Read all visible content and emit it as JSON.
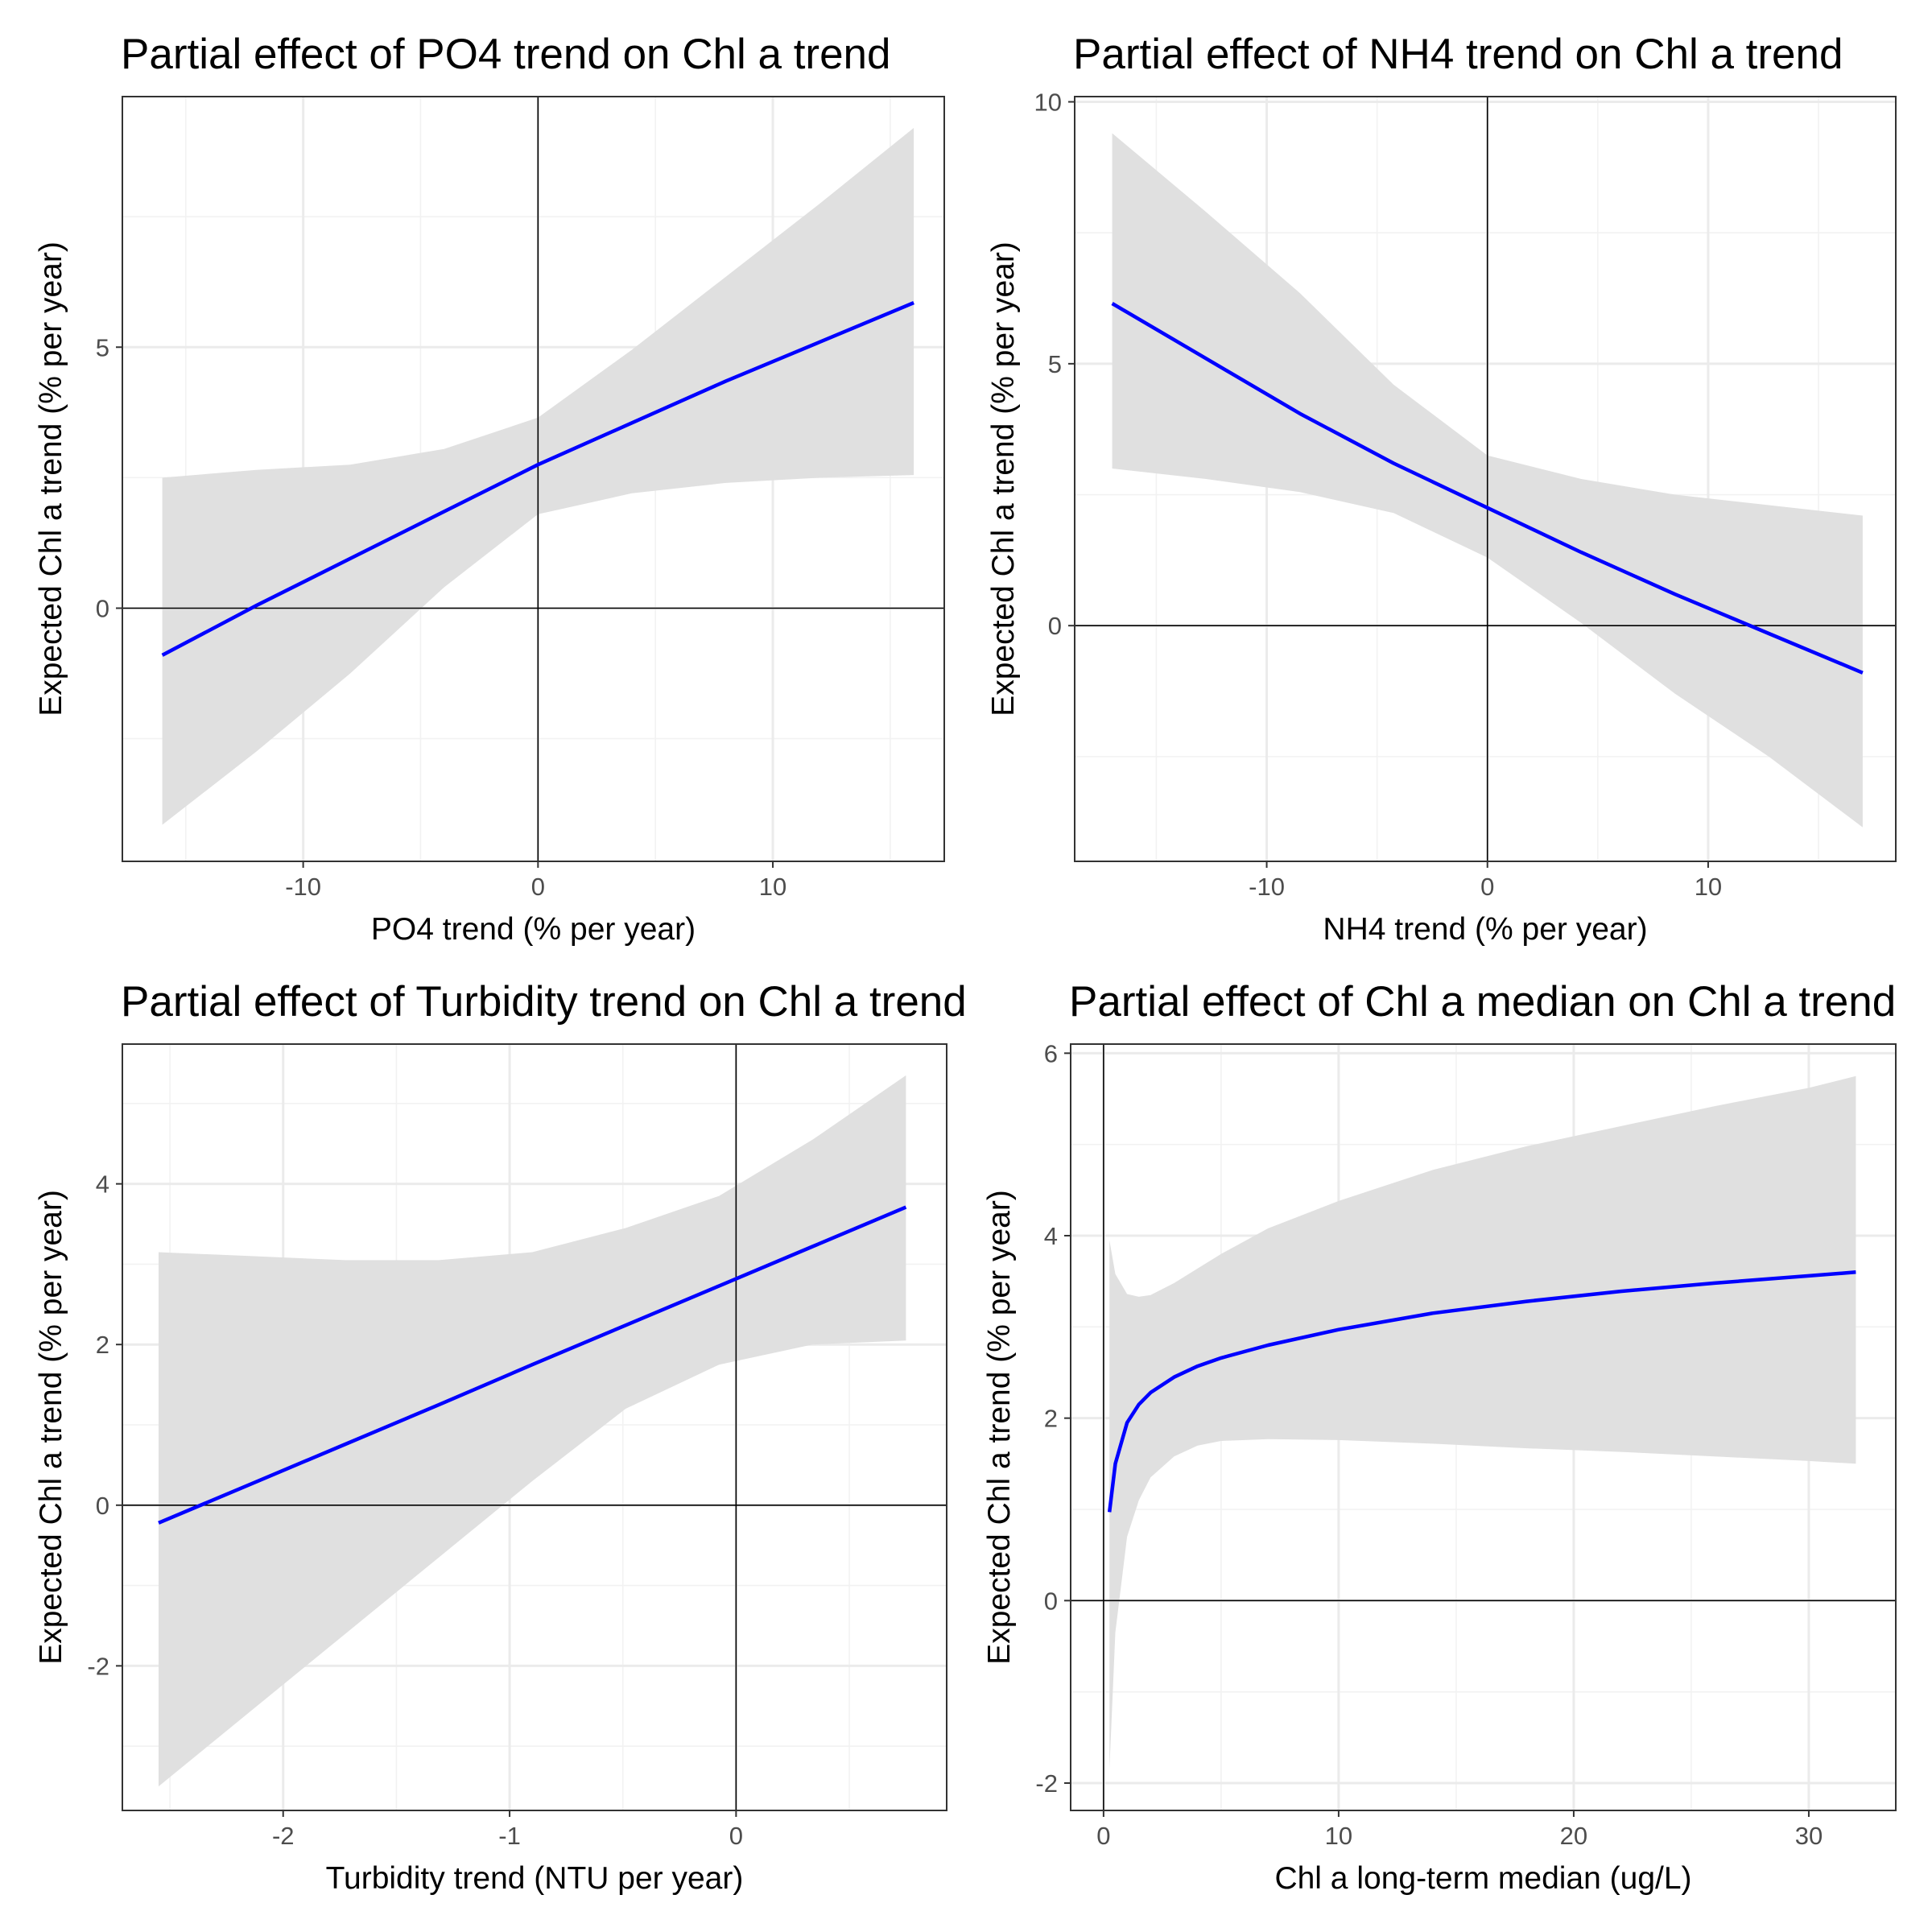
{
  "chart_data": [
    {
      "type": "line",
      "title": "Partial effect of PO4 trend on Chl a trend",
      "xlabel": "PO4 trend (% per year)",
      "ylabel": "Expected Chl a trend (% per year)",
      "xlim": [
        -17.7,
        17.3
      ],
      "ylim": [
        -4.85,
        9.8
      ],
      "xticks": [
        -10,
        0,
        10
      ],
      "yticks": [
        0,
        5
      ],
      "xtick_labels": [
        "-10",
        "0",
        "10"
      ],
      "ytick_labels": [
        "0",
        "5"
      ],
      "xminor": [
        -15,
        -5,
        5,
        15
      ],
      "yminor": [
        -2.5,
        2.5,
        7.5
      ],
      "refline_x": 0,
      "refline_y": 0,
      "grid": true,
      "line_color": "#0000ff",
      "band_color": "#e0e0e0",
      "x": [
        -16,
        -12,
        -8,
        -4,
        0,
        4,
        8,
        12,
        16
      ],
      "y": [
        -0.9,
        0.05,
        0.95,
        1.85,
        2.75,
        3.55,
        4.35,
        5.1,
        5.85
      ],
      "lower": [
        -4.15,
        -2.75,
        -1.25,
        0.4,
        1.8,
        2.2,
        2.4,
        2.5,
        2.55
      ],
      "upper": [
        2.5,
        2.65,
        2.75,
        3.05,
        3.65,
        4.95,
        6.35,
        7.75,
        9.2
      ]
    },
    {
      "type": "line",
      "title": "Partial effect of NH4 trend on Chl a trend",
      "xlabel": "NH4 trend (% per year)",
      "ylabel": "Expected Chl a trend (% per year)",
      "xlim": [
        -18.7,
        18.5
      ],
      "ylim": [
        -4.5,
        10.1
      ],
      "xticks": [
        -10,
        0,
        10
      ],
      "yticks": [
        0,
        5,
        10
      ],
      "xtick_labels": [
        "-10",
        "0",
        "10"
      ],
      "ytick_labels": [
        "0",
        "5",
        "10"
      ],
      "xminor": [
        -15,
        -5,
        5,
        15
      ],
      "yminor": [
        -2.5,
        2.5,
        7.5
      ],
      "refline_x": 0,
      "refline_y": 0,
      "grid": true,
      "line_color": "#0000ff",
      "band_color": "#e0e0e0",
      "x": [
        -17,
        -12.75,
        -8.5,
        -4.25,
        0,
        4.25,
        8.5,
        12.75,
        17
      ],
      "y": [
        6.15,
        5.1,
        4.05,
        3.1,
        2.25,
        1.4,
        0.6,
        -0.15,
        -0.9
      ],
      "lower": [
        3.0,
        2.8,
        2.55,
        2.15,
        1.3,
        0.05,
        -1.3,
        -2.5,
        -3.85
      ],
      "upper": [
        9.4,
        7.9,
        6.35,
        4.6,
        3.25,
        2.8,
        2.5,
        2.3,
        2.1
      ]
    },
    {
      "type": "line",
      "title": "Partial effect of Turbidity trend on Chl a trend",
      "xlabel": "Turbidity trend (NTU per year)",
      "ylabel": "Expected Chl a trend (% per year)",
      "xlim": [
        -2.71,
        0.93
      ],
      "ylim": [
        -3.8,
        5.74
      ],
      "xticks": [
        -2,
        -1,
        0
      ],
      "yticks": [
        -2,
        0,
        2,
        4
      ],
      "xtick_labels": [
        "-2",
        "-1",
        "0"
      ],
      "ytick_labels": [
        "-2",
        "0",
        "2",
        "4"
      ],
      "xminor": [
        -2.5,
        -1.5,
        -0.5,
        0.5
      ],
      "yminor": [
        -3,
        -1,
        1,
        3,
        5
      ],
      "refline_x": 0,
      "refline_y": 0,
      "grid": true,
      "line_color": "#0000ff",
      "band_color": "#e0e0e0",
      "x": [
        -2.55,
        -2.1375,
        -1.725,
        -1.3125,
        -0.9,
        -0.4875,
        -0.075,
        0.3375,
        0.75
      ],
      "y": [
        -0.22,
        0.27,
        0.76,
        1.25,
        1.75,
        2.24,
        2.73,
        3.22,
        3.71
      ],
      "lower": [
        -3.5,
        -2.55,
        -1.6,
        -0.65,
        0.3,
        1.2,
        1.75,
        2.0,
        2.05
      ],
      "upper": [
        3.15,
        3.1,
        3.05,
        3.05,
        3.15,
        3.45,
        3.85,
        4.55,
        5.35
      ]
    },
    {
      "type": "line",
      "title": "Partial effect of Chl a median on Chl a trend",
      "xlabel": "Chl a long-term median (ug/L)",
      "ylabel": "Expected Chl a trend (% per year)",
      "xlim": [
        -1.4,
        33.7
      ],
      "ylim": [
        -2.3,
        6.1
      ],
      "xticks": [
        0,
        10,
        20,
        30
      ],
      "yticks": [
        -2,
        0,
        2,
        4,
        6
      ],
      "xtick_labels": [
        "0",
        "10",
        "20",
        "30"
      ],
      "ytick_labels": [
        "-2",
        "0",
        "2",
        "4",
        "6"
      ],
      "xminor": [
        5,
        15,
        25
      ],
      "yminor": [
        -1,
        1,
        3,
        5
      ],
      "refline_x": 0,
      "refline_y": 0,
      "grid": true,
      "line_color": "#0000ff",
      "band_color": "#e0e0e0",
      "x": [
        0.25,
        0.5,
        1,
        1.5,
        2,
        3,
        4,
        5,
        7,
        10,
        14,
        18,
        22,
        26,
        30,
        32
      ],
      "y": [
        0.97,
        1.5,
        1.95,
        2.15,
        2.28,
        2.45,
        2.57,
        2.66,
        2.8,
        2.97,
        3.15,
        3.28,
        3.39,
        3.48,
        3.56,
        3.6
      ],
      "lower": [
        -1.85,
        -0.35,
        0.7,
        1.1,
        1.35,
        1.58,
        1.7,
        1.75,
        1.77,
        1.76,
        1.72,
        1.67,
        1.63,
        1.58,
        1.53,
        1.5
      ],
      "upper": [
        3.95,
        3.58,
        3.36,
        3.33,
        3.35,
        3.48,
        3.64,
        3.8,
        4.08,
        4.38,
        4.72,
        4.98,
        5.2,
        5.42,
        5.62,
        5.75
      ]
    }
  ]
}
